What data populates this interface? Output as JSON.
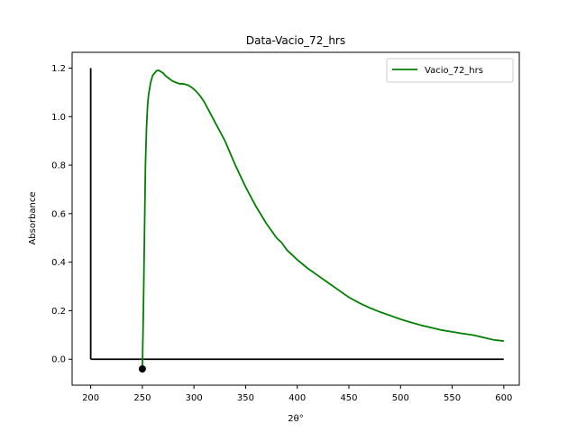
{
  "chart_data": {
    "type": "line",
    "title": "Data-Vacio_72_hrs",
    "xlabel": "2θ°",
    "ylabel": "Absorbance",
    "xlim": [
      182,
      615
    ],
    "ylim": [
      -0.107,
      1.265
    ],
    "xticks": [
      200,
      250,
      300,
      350,
      400,
      450,
      500,
      550,
      600
    ],
    "xtick_labels": [
      "200",
      "250",
      "300",
      "350",
      "400",
      "450",
      "500",
      "550",
      "600"
    ],
    "yticks": [
      0.0,
      0.2,
      0.4,
      0.6,
      0.8,
      1.0,
      1.2
    ],
    "ytick_labels": [
      "0.0",
      "0.2",
      "0.4",
      "0.6",
      "0.8",
      "1.0",
      "1.2"
    ],
    "grid": false,
    "legend_position": "top-right",
    "series": [
      {
        "name": "Vacio_72_hrs",
        "color": "#008000",
        "x": [
          250,
          251,
          252,
          253,
          254,
          255,
          256,
          258,
          260,
          262,
          264,
          266,
          268,
          270,
          272,
          275,
          278,
          280,
          283,
          286,
          290,
          294,
          298,
          302,
          306,
          310,
          315,
          320,
          325,
          330,
          335,
          340,
          350,
          360,
          370,
          380,
          385,
          390,
          400,
          410,
          420,
          430,
          440,
          450,
          460,
          470,
          480,
          490,
          500,
          510,
          520,
          530,
          540,
          550,
          560,
          570,
          580,
          590,
          600
        ],
        "y": [
          -0.04,
          0.2,
          0.5,
          0.8,
          0.95,
          1.04,
          1.09,
          1.14,
          1.17,
          1.18,
          1.19,
          1.19,
          1.185,
          1.18,
          1.17,
          1.16,
          1.15,
          1.145,
          1.14,
          1.135,
          1.135,
          1.13,
          1.12,
          1.105,
          1.085,
          1.06,
          1.02,
          0.98,
          0.94,
          0.9,
          0.85,
          0.8,
          0.71,
          0.63,
          0.56,
          0.5,
          0.48,
          0.45,
          0.41,
          0.375,
          0.345,
          0.315,
          0.285,
          0.255,
          0.232,
          0.212,
          0.195,
          0.18,
          0.165,
          0.152,
          0.14,
          0.13,
          0.12,
          0.113,
          0.106,
          0.1,
          0.09,
          0.08,
          0.075
        ]
      }
    ],
    "reference_lines": [
      {
        "x": [
          200,
          200
        ],
        "y": [
          0.0,
          1.2
        ],
        "color": "#000000"
      },
      {
        "x": [
          200,
          600
        ],
        "y": [
          0.0,
          0.0
        ],
        "color": "#000000"
      }
    ],
    "marker_point": {
      "x": 250,
      "y": -0.04,
      "color": "#000000"
    }
  }
}
